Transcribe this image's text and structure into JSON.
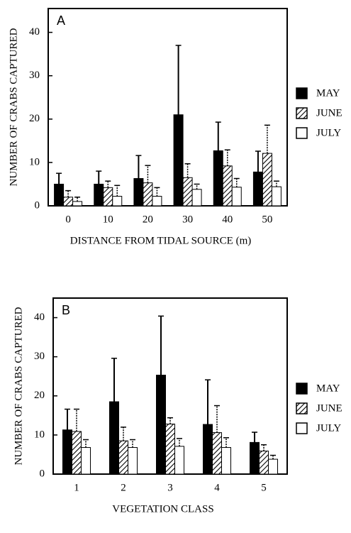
{
  "chart_data": [
    {
      "type": "bar",
      "title": "A",
      "x_label": "DISTANCE FROM TIDAL SOURCE (m)",
      "y_label": "NUMBER OF CRABS CAPTURED",
      "categories": [
        "0",
        "10",
        "20",
        "30",
        "40",
        "50"
      ],
      "series": [
        {
          "name": "MAY",
          "color": "#000000",
          "values": [
            5,
            5,
            6.3,
            21,
            12.7,
            7.8
          ],
          "errors": [
            2.5,
            3,
            5.3,
            16,
            6.6,
            4.8
          ]
        },
        {
          "name": "JUNE",
          "color": "#000000",
          "hatch": true,
          "values": [
            2,
            4.2,
            5.3,
            6.5,
            9.2,
            12.1
          ],
          "errors": [
            1.5,
            1.5,
            4,
            3.2,
            3.7,
            6.5
          ]
        },
        {
          "name": "JULY",
          "color": "#ffffff",
          "values": [
            1,
            2.2,
            2.2,
            3.8,
            4.3,
            4.4
          ],
          "errors": [
            1,
            2.5,
            2,
            1.2,
            2,
            1.3
          ]
        }
      ],
      "ylim": [
        0,
        45.5
      ],
      "yticks": [
        0,
        10,
        20,
        30,
        40
      ]
    },
    {
      "type": "bar",
      "title": "B",
      "x_label": "VEGETATION CLASS",
      "y_label": "NUMBER OF CRABS CAPTURED",
      "categories": [
        "1",
        "2",
        "3",
        "4",
        "5"
      ],
      "series": [
        {
          "name": "MAY",
          "color": "#000000",
          "values": [
            11.3,
            18.5,
            25.3,
            12.7,
            8.1
          ],
          "errors": [
            5.3,
            11.1,
            15.1,
            11.4,
            2.6
          ]
        },
        {
          "name": "JUNE",
          "color": "#000000",
          "hatch": true,
          "values": [
            10.9,
            8.5,
            12.8,
            10.6,
            5.9
          ],
          "errors": [
            5.7,
            3.5,
            1.6,
            6.9,
            1.6
          ]
        },
        {
          "name": "JULY",
          "color": "#ffffff",
          "values": [
            6.8,
            6.8,
            7.1,
            6.8,
            3.8
          ],
          "errors": [
            2,
            2,
            2,
            2.5,
            1
          ]
        }
      ],
      "ylim": [
        0,
        45
      ],
      "yticks": [
        0,
        10,
        20,
        30,
        40
      ]
    }
  ]
}
